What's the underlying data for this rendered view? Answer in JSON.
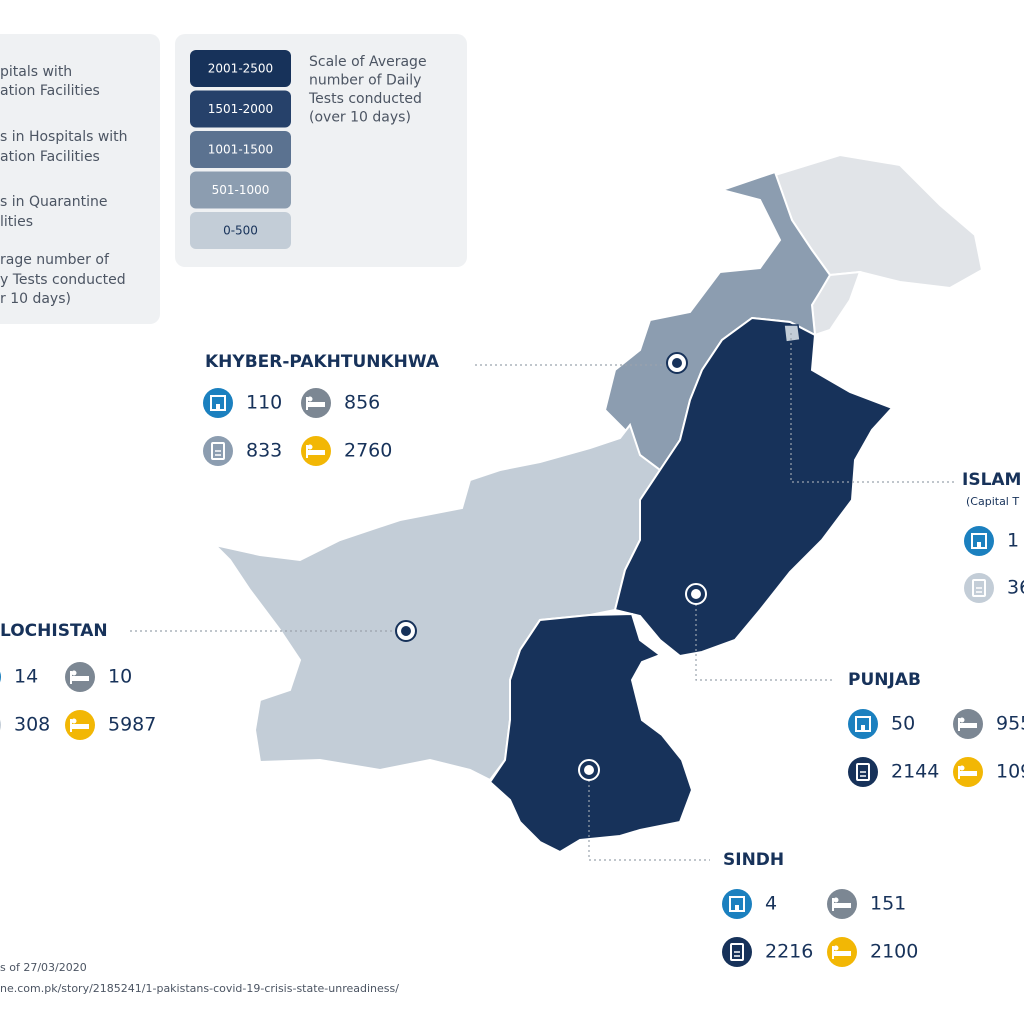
{
  "legend": {
    "items": [
      [
        "pitals with",
        "ation Facilities"
      ],
      [
        "s in Hospitals with",
        "ation Facilities"
      ],
      [
        "s in Quarantine",
        "lities"
      ],
      [
        "rage number of",
        "y Tests conducted",
        "r 10 days)"
      ]
    ]
  },
  "scale": {
    "title": [
      "Scale of Average",
      "number of Daily",
      "Tests conducted",
      "(over 10 days)"
    ],
    "levels": [
      {
        "label": "2001-2500",
        "color": "#17325a"
      },
      {
        "label": "1501-2000",
        "color": "#26416a"
      },
      {
        "label": "1001-1500",
        "color": "#5b7290"
      },
      {
        "label": "501-1000",
        "color": "#8c9db0"
      },
      {
        "label": "0-500",
        "color": "#c3cdd7"
      }
    ]
  },
  "regions": [
    {
      "name": "KHYBER-PAKHTUNKHWA",
      "color": "#8c9db0",
      "hospitals": 110,
      "beds": 856,
      "tests": 833,
      "quarantine": 2760
    },
    {
      "name": "ISLAM",
      "subtitle": "(Capital T",
      "color": "#c3cdd7",
      "hospitals": "1",
      "tests": "36"
    },
    {
      "name": "LOCHISTAN",
      "color": "#c3cdd7",
      "hospitals": 14,
      "beds": 10,
      "tests": 308,
      "quarantine": 5987
    },
    {
      "name": "PUNJAB",
      "color": "#17325a",
      "hospitals": 50,
      "beds": "955",
      "tests": 2144,
      "quarantine": "109"
    },
    {
      "name": "SINDH",
      "color": "#17325a",
      "hospitals": 4,
      "beds": 151,
      "tests": 2216,
      "quarantine": 2100
    }
  ],
  "footer": [
    "s of 27/03/2020",
    "ne.com.pk/story/2185241/1-pakistans-covid-19-crisis-state-unreadiness/"
  ]
}
